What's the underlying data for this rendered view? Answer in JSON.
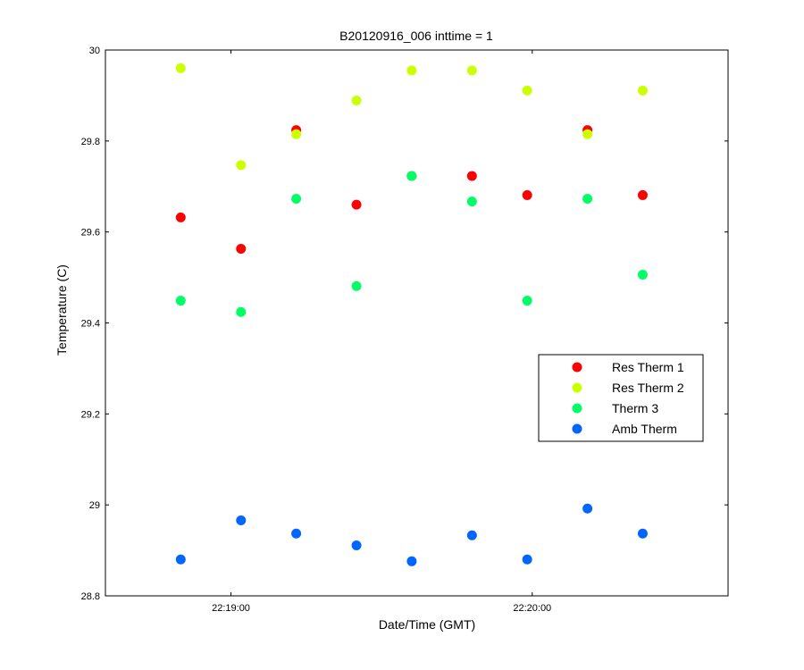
{
  "chart_data": {
    "type": "scatter",
    "title": "B20120916_006 inttime = 1",
    "xlabel": "Date/Time (GMT)",
    "ylabel": "Temperature (C)",
    "xlim": [
      "22:18:35",
      "22:20:39"
    ],
    "ylim": [
      28.8,
      30
    ],
    "grid": false,
    "legend_position": "right",
    "x_ticks": [
      "22:19:00",
      "22:20:00"
    ],
    "y_ticks": [
      28.8,
      29,
      29.2,
      29.4,
      29.6,
      29.8,
      30
    ],
    "y_tick_labels": [
      "28.8",
      "29",
      "29.2",
      "29.4",
      "29.6",
      "29.8",
      "30"
    ],
    "x": [
      "22:18:50",
      "22:19:02",
      "22:19:13",
      "22:19:25",
      "22:19:36",
      "22:19:48",
      "22:19:59",
      "22:20:11",
      "22:20:22"
    ],
    "series": [
      {
        "name": "Res Therm 1",
        "color": "#ff0000",
        "values": [
          29.632,
          29.563,
          29.824,
          29.66,
          29.723,
          29.723,
          29.681,
          29.824,
          29.681
        ]
      },
      {
        "name": "Res Therm 2",
        "color": "#ccff00",
        "values": [
          29.96,
          29.747,
          29.815,
          29.889,
          29.955,
          29.955,
          29.911,
          29.815,
          29.911
        ]
      },
      {
        "name": "Therm 3",
        "color": "#00ff66",
        "values": [
          29.449,
          29.424,
          29.673,
          29.481,
          29.723,
          29.667,
          29.449,
          29.673,
          29.506
        ]
      },
      {
        "name": "Amb Therm",
        "color": "#0066ff",
        "values": [
          28.88,
          28.966,
          28.937,
          28.911,
          28.876,
          28.933,
          28.88,
          28.992,
          28.937
        ]
      }
    ]
  }
}
